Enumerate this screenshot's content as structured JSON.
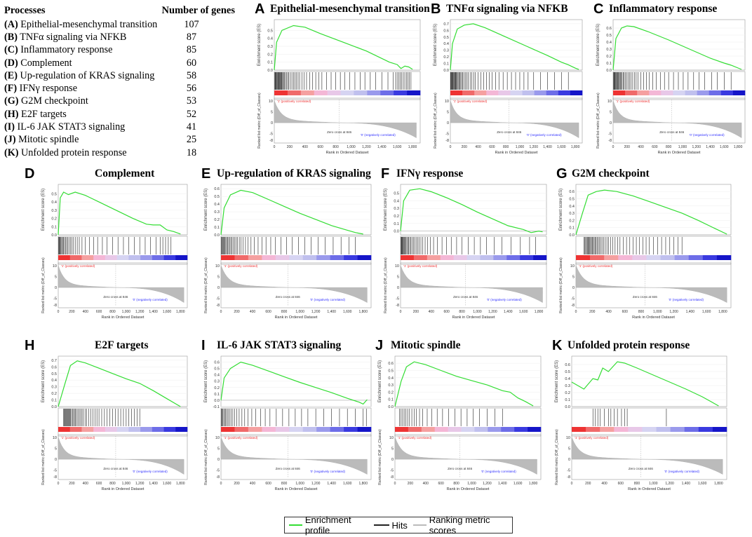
{
  "table": {
    "header_process": "Processes",
    "header_count": "Number of genes",
    "rows": [
      {
        "letter": "(A)",
        "name": "Epithelial-mesenchymal transition",
        "count": "107"
      },
      {
        "letter": "(B)",
        "name": "TNFα signaling via NFKB",
        "count": "87"
      },
      {
        "letter": "(C)",
        "name": "Inflammatory response",
        "count": "85"
      },
      {
        "letter": "(D)",
        "name": "Complement",
        "count": "60"
      },
      {
        "letter": "(E)",
        "name": "Up-regulation of KRAS signaling",
        "count": "58"
      },
      {
        "letter": "(F)",
        "name": "IFNγ response",
        "count": "56"
      },
      {
        "letter": "(G)",
        "name": "G2M checkpoint",
        "count": "53"
      },
      {
        "letter": "(H)",
        "name": "E2F targets",
        "count": "52"
      },
      {
        "letter": "(I)",
        "name": "IL-6 JAK STAT3 signaling",
        "count": "41"
      },
      {
        "letter": "(J)",
        "name": "Mitotic spindle",
        "count": "25"
      },
      {
        "letter": "(K)",
        "name": "Unfolded protein response",
        "count": "18"
      }
    ]
  },
  "legend": {
    "enrichment": "Enrichment profile",
    "hits": "Hits",
    "ranking": "Ranking metric scores",
    "colors": {
      "enrichment": "#33dd33",
      "hits": "#222222",
      "ranking": "#bbbbbb"
    }
  },
  "common": {
    "es_ylabel": "Enrichment score (ES)",
    "rank_ylabel": "Ranked list metric (Diff_of_Classes)",
    "xlabel": "Rank in Ordered Dataset",
    "pos_label": "'1' (positively correlated)",
    "neg_label": "'0' (negatively correlated)",
    "zero_cross": "Zero cross at 846",
    "x_ticks": [
      0,
      200,
      400,
      600,
      800,
      "1,000",
      "1,200",
      "1,400",
      "1,600",
      "1,800"
    ],
    "rank_ticks": [
      10,
      5,
      0,
      -5,
      -8
    ]
  },
  "chart_data": [
    {
      "type": "line",
      "letter": "A",
      "title": "Epithelial-mesenchymal transition",
      "ylim": [
        0,
        0.6
      ],
      "y_ticks": [
        "0.0",
        "0.1",
        "0.2",
        "0.3",
        "0.4",
        "0.5"
      ],
      "x": [
        0,
        30,
        100,
        250,
        400,
        600,
        900,
        1200,
        1500,
        1600,
        1650,
        1700,
        1750,
        1800
      ],
      "es": [
        0.0,
        0.35,
        0.5,
        0.56,
        0.54,
        0.46,
        0.35,
        0.24,
        0.1,
        0.07,
        0.02,
        0.05,
        0.04,
        0.01
      ],
      "hits": [
        5,
        12,
        18,
        25,
        33,
        40,
        48,
        55,
        63,
        70,
        78,
        85,
        92,
        100,
        110,
        120,
        130,
        145,
        160,
        175,
        190,
        210,
        230,
        250,
        270,
        290,
        310,
        330,
        360,
        390,
        420,
        460,
        500,
        540,
        580,
        620,
        680,
        740,
        800,
        860,
        920,
        980,
        1050,
        1120,
        1180,
        1250,
        1320,
        1400,
        1480,
        1550,
        1580,
        1600,
        1620,
        1640,
        1660,
        1680,
        1700,
        1720,
        1740,
        1760,
        1780
      ]
    },
    {
      "type": "line",
      "letter": "B",
      "title": "TNFα signaling via NFKB",
      "ylim": [
        0,
        0.72
      ],
      "y_ticks": [
        "0.0",
        "0.1",
        "0.2",
        "0.3",
        "0.4",
        "0.5",
        "0.6",
        "0.7"
      ],
      "x": [
        0,
        30,
        100,
        200,
        330,
        500,
        800,
        1100,
        1400,
        1600,
        1700,
        1800,
        1850
      ],
      "es": [
        0.0,
        0.4,
        0.62,
        0.68,
        0.7,
        0.64,
        0.5,
        0.36,
        0.22,
        0.12,
        0.08,
        0.03,
        0.01
      ],
      "hits": [
        4,
        9,
        15,
        22,
        30,
        38,
        46,
        55,
        64,
        72,
        80,
        90,
        100,
        112,
        124,
        136,
        150,
        165,
        180,
        200,
        220,
        240,
        260,
        285,
        310,
        335,
        360,
        400,
        440,
        480,
        520,
        560,
        600,
        650,
        700,
        760,
        820,
        880,
        940,
        1000,
        1060,
        1120,
        1200,
        1300,
        1400,
        1500,
        1600,
        1700
      ]
    },
    {
      "type": "line",
      "letter": "C",
      "title": "Inflammatory response",
      "ylim": [
        0,
        0.68
      ],
      "y_ticks": [
        "0.0",
        "0.1",
        "0.2",
        "0.3",
        "0.4",
        "0.5",
        "0.6"
      ],
      "x": [
        0,
        40,
        120,
        200,
        300,
        500,
        800,
        1100,
        1400,
        1600,
        1700,
        1800,
        1850
      ],
      "es": [
        0.0,
        0.45,
        0.6,
        0.63,
        0.62,
        0.55,
        0.43,
        0.3,
        0.17,
        0.1,
        0.07,
        0.03,
        0.01
      ],
      "hits": [
        6,
        13,
        20,
        28,
        36,
        45,
        54,
        63,
        72,
        82,
        92,
        104,
        116,
        130,
        145,
        160,
        178,
        196,
        216,
        236,
        258,
        282,
        306,
        332,
        360,
        400,
        440,
        480,
        520,
        570,
        620,
        680,
        740,
        800,
        870,
        940,
        1010,
        1080,
        1160,
        1240,
        1320,
        1420,
        1500,
        1600,
        1700
      ]
    },
    {
      "type": "line",
      "letter": "D",
      "title": "Complement",
      "ylim": [
        0,
        0.58
      ],
      "y_ticks": [
        "0.0",
        "0.1",
        "0.2",
        "0.3",
        "0.4",
        "0.5"
      ],
      "x": [
        0,
        30,
        80,
        150,
        250,
        400,
        600,
        900,
        1100,
        1300,
        1400,
        1500,
        1600,
        1700,
        1800
      ],
      "es": [
        0.0,
        0.45,
        0.52,
        0.49,
        0.52,
        0.48,
        0.4,
        0.28,
        0.2,
        0.13,
        0.12,
        0.12,
        0.06,
        0.04,
        0.01
      ],
      "hits": [
        5,
        12,
        20,
        30,
        40,
        52,
        64,
        78,
        92,
        108,
        124,
        142,
        160,
        180,
        200,
        225,
        250,
        280,
        310,
        350,
        400,
        460,
        520,
        580,
        650,
        720,
        800,
        880,
        960,
        1040,
        1120,
        1200,
        1280,
        1360,
        1440,
        1500,
        1540,
        1580,
        1620,
        1660
      ]
    },
    {
      "type": "line",
      "letter": "E",
      "title": "Up-regulation of KRAS signaling",
      "ylim": [
        0,
        0.62
      ],
      "y_ticks": [
        "0.0",
        "0.1",
        "0.2",
        "0.3",
        "0.4",
        "0.5",
        "0.6"
      ],
      "x": [
        0,
        40,
        120,
        250,
        400,
        600,
        800,
        1000,
        1200,
        1400,
        1600,
        1700,
        1800
      ],
      "es": [
        0.0,
        0.35,
        0.52,
        0.58,
        0.55,
        0.46,
        0.37,
        0.28,
        0.2,
        0.12,
        0.06,
        0.03,
        0.01
      ],
      "hits": [
        6,
        14,
        22,
        31,
        40,
        50,
        61,
        72,
        84,
        97,
        110,
        125,
        140,
        156,
        172,
        190,
        210,
        232,
        255,
        280,
        310,
        340,
        380,
        420,
        470,
        520,
        570,
        630,
        690,
        760,
        830,
        900,
        980,
        1060,
        1140,
        1230,
        1320,
        1420,
        1520,
        1620,
        1700
      ]
    },
    {
      "type": "line",
      "letter": "F",
      "title": "IFNγ response",
      "ylim": [
        -0.05,
        0.58
      ],
      "y_ticks": [
        "0.0",
        "0.1",
        "0.2",
        "0.3",
        "0.4",
        "0.5"
      ],
      "x": [
        0,
        40,
        120,
        250,
        400,
        600,
        800,
        1000,
        1200,
        1400,
        1600,
        1700,
        1800,
        1850
      ],
      "es": [
        0.0,
        0.4,
        0.54,
        0.56,
        0.52,
        0.44,
        0.35,
        0.25,
        0.16,
        0.07,
        0.02,
        -0.02,
        0.0,
        -0.01
      ],
      "hits": [
        5,
        11,
        18,
        25,
        33,
        42,
        51,
        61,
        71,
        82,
        94,
        107,
        120,
        135,
        150,
        167,
        184,
        203,
        222,
        243,
        265,
        290,
        320,
        350,
        390,
        430,
        480,
        540,
        600,
        660,
        730,
        800,
        880,
        960,
        1040,
        1120,
        1220,
        1320,
        1440,
        1560,
        1680,
        1760
      ]
    },
    {
      "type": "line",
      "letter": "G",
      "title": "G2M checkpoint",
      "ylim": [
        0,
        0.66
      ],
      "y_ticks": [
        "0.0",
        "0.1",
        "0.2",
        "0.3",
        "0.4",
        "0.5",
        "0.6"
      ],
      "x": [
        0,
        80,
        150,
        250,
        350,
        500,
        700,
        900,
        1100,
        1300,
        1500,
        1700,
        1850
      ],
      "es": [
        0.0,
        0.3,
        0.55,
        0.6,
        0.62,
        0.6,
        0.54,
        0.46,
        0.38,
        0.3,
        0.2,
        0.09,
        0.01
      ],
      "hits": [
        100,
        110,
        120,
        130,
        140,
        150,
        160,
        170,
        180,
        190,
        200,
        212,
        224,
        236,
        248,
        260,
        275,
        290,
        305,
        320,
        340,
        360,
        380,
        400,
        425,
        450,
        480,
        510,
        540,
        580,
        620,
        660,
        700,
        740,
        780,
        820,
        860,
        900,
        950,
        1000,
        1050,
        1100,
        1150,
        1200,
        1250,
        1300
      ]
    },
    {
      "type": "line",
      "letter": "H",
      "title": "E2F targets",
      "ylim": [
        0,
        0.72
      ],
      "y_ticks": [
        "0.0",
        "0.1",
        "0.2",
        "0.3",
        "0.4",
        "0.5",
        "0.6",
        "0.7"
      ],
      "x": [
        0,
        100,
        180,
        280,
        400,
        600,
        800,
        1000,
        1200,
        1400,
        1600,
        1800
      ],
      "es": [
        0.0,
        0.35,
        0.62,
        0.69,
        0.66,
        0.58,
        0.5,
        0.42,
        0.35,
        0.24,
        0.12,
        0.0
      ],
      "hits": [
        80,
        90,
        100,
        110,
        120,
        130,
        140,
        150,
        160,
        170,
        180,
        195,
        210,
        225,
        240,
        255,
        270,
        290,
        310,
        330,
        350,
        370,
        395,
        420,
        450,
        480,
        510,
        540,
        570,
        600,
        640,
        680,
        720,
        760,
        800,
        840,
        880,
        920,
        960,
        1000,
        1040,
        1080,
        1120,
        1160,
        1200
      ]
    },
    {
      "type": "line",
      "letter": "I",
      "title": "IL-6 JAK STAT3 signaling",
      "ylim": [
        -0.1,
        0.65
      ],
      "y_ticks": [
        "-0.1",
        "0.0",
        "0.1",
        "0.2",
        "0.3",
        "0.4",
        "0.5",
        "0.6"
      ],
      "x": [
        0,
        40,
        120,
        250,
        400,
        600,
        800,
        1000,
        1200,
        1400,
        1600,
        1750,
        1800,
        1850
      ],
      "es": [
        0.0,
        0.35,
        0.5,
        0.6,
        0.55,
        0.46,
        0.37,
        0.28,
        0.2,
        0.12,
        0.03,
        -0.03,
        -0.06,
        0.01
      ],
      "hits": [
        6,
        14,
        24,
        35,
        47,
        60,
        74,
        90,
        108,
        128,
        150,
        175,
        200,
        230,
        265,
        300,
        340,
        390,
        440,
        500,
        560,
        620,
        700,
        780,
        860,
        940,
        1020,
        1100,
        1200,
        1300,
        1400,
        1500,
        1600,
        1700,
        1800,
        1840
      ]
    },
    {
      "type": "line",
      "letter": "J",
      "title": "Mitotic spindle",
      "ylim": [
        0,
        0.66
      ],
      "y_ticks": [
        "0.0",
        "0.1",
        "0.2",
        "0.3",
        "0.4",
        "0.5",
        "0.6"
      ],
      "x": [
        0,
        80,
        150,
        250,
        400,
        600,
        800,
        1000,
        1200,
        1400,
        1500,
        1600,
        1700,
        1800
      ],
      "es": [
        0.0,
        0.35,
        0.55,
        0.62,
        0.58,
        0.5,
        0.42,
        0.36,
        0.3,
        0.22,
        0.2,
        0.12,
        0.07,
        0.01
      ],
      "hits": [
        60,
        80,
        100,
        120,
        140,
        165,
        190,
        220,
        250,
        280,
        320,
        360,
        420,
        480,
        550,
        620,
        700,
        780,
        860,
        940,
        1020,
        1100,
        1200,
        1300,
        1400
      ]
    },
    {
      "type": "line",
      "letter": "K",
      "title": "Unfolded protein response",
      "ylim": [
        0,
        0.68
      ],
      "y_ticks": [
        "0.0",
        "0.1",
        "0.2",
        "0.3",
        "0.4",
        "0.5",
        "0.6"
      ],
      "x": [
        0,
        150,
        260,
        320,
        380,
        450,
        560,
        650,
        800,
        1000,
        1200,
        1400,
        1600,
        1800
      ],
      "es": [
        0.35,
        0.25,
        0.4,
        0.38,
        0.55,
        0.5,
        0.64,
        0.62,
        0.55,
        0.45,
        0.35,
        0.25,
        0.14,
        0.01
      ],
      "hits": [
        260,
        290,
        320,
        350,
        400,
        450,
        480,
        520,
        560,
        610,
        650,
        680,
        1160
      ]
    }
  ]
}
